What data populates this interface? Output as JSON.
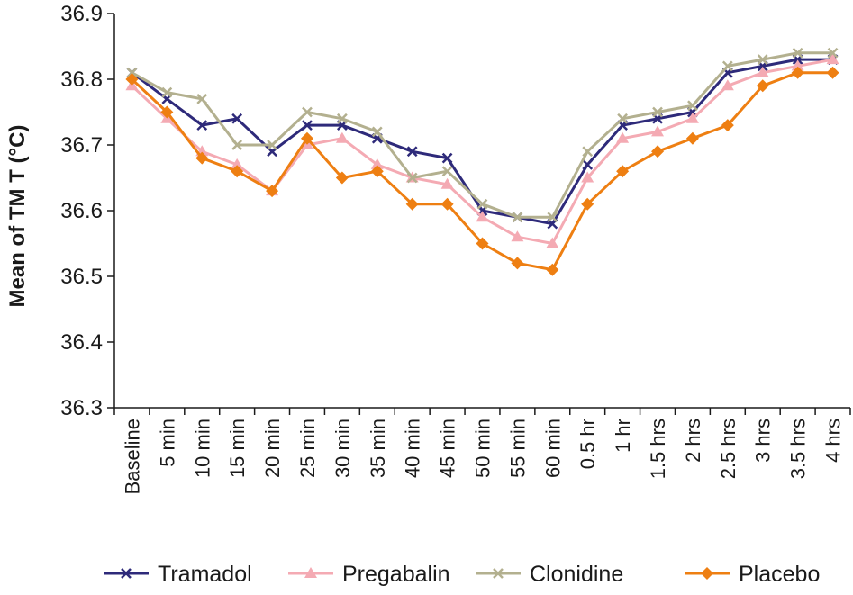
{
  "chart_data": {
    "type": "line",
    "title": "",
    "xlabel": "",
    "ylabel": "Mean of TM T (°C)",
    "ylim": [
      36.3,
      36.9
    ],
    "yticks": [
      "36.3",
      "36.4",
      "36.5",
      "36.6",
      "36.7",
      "36.8",
      "36.9"
    ],
    "grid": false,
    "legend_position": "bottom",
    "categories": [
      "Baseline",
      "5 min",
      "10 min",
      "15 min",
      "20 min",
      "25 min",
      "30 min",
      "35 min",
      "40 min",
      "45 min",
      "50 min",
      "55 min",
      "60 min",
      "0.5 hr",
      "1 hr",
      "1.5 hrs",
      "2 hrs",
      "2.5 hrs",
      "3 hrs",
      "3.5 hrs",
      "4 hrs"
    ],
    "series": [
      {
        "name": "Tramadol",
        "color": "#2e2a7a",
        "marker": "x",
        "values": [
          36.81,
          36.77,
          36.73,
          36.74,
          36.69,
          36.73,
          36.73,
          36.71,
          36.69,
          36.68,
          36.6,
          36.59,
          36.58,
          36.67,
          36.73,
          36.74,
          36.75,
          36.81,
          36.82,
          36.83,
          36.83
        ]
      },
      {
        "name": "Pregabalin",
        "color": "#f4aab3",
        "marker": "triangle",
        "values": [
          36.79,
          36.74,
          36.69,
          36.67,
          36.63,
          36.7,
          36.71,
          36.67,
          36.65,
          36.64,
          36.59,
          36.56,
          36.55,
          36.65,
          36.71,
          36.72,
          36.74,
          36.79,
          36.81,
          36.82,
          36.83
        ]
      },
      {
        "name": "Clonidine",
        "color": "#b3b08f",
        "marker": "x",
        "values": [
          36.81,
          36.78,
          36.77,
          36.7,
          36.7,
          36.75,
          36.74,
          36.72,
          36.65,
          36.66,
          36.61,
          36.59,
          36.59,
          36.69,
          36.74,
          36.75,
          36.76,
          36.82,
          36.83,
          36.84,
          36.84
        ]
      },
      {
        "name": "Placebo",
        "color": "#ee7f12",
        "marker": "diamond",
        "values": [
          36.8,
          36.75,
          36.68,
          36.66,
          36.63,
          36.71,
          36.65,
          36.66,
          36.61,
          36.61,
          36.55,
          36.52,
          36.51,
          36.61,
          36.66,
          36.69,
          36.71,
          36.73,
          36.79,
          36.81,
          36.81
        ]
      }
    ]
  }
}
